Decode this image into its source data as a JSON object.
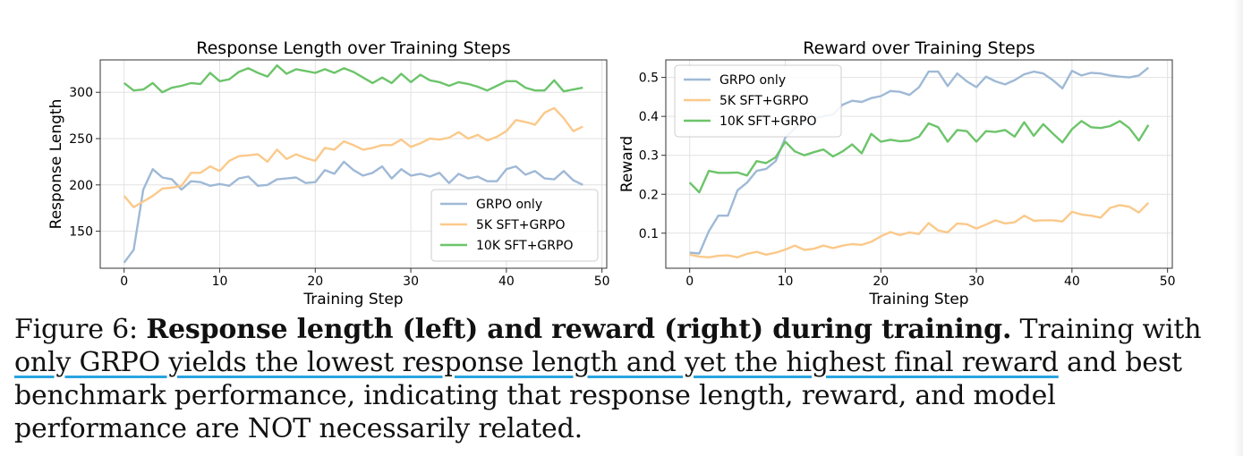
{
  "chart_data": [
    {
      "type": "line",
      "title": "Response Length over Training Steps",
      "xlabel": "Training Step",
      "ylabel": "Response Length",
      "xlim": [
        -2.5,
        50.5
      ],
      "ylim": [
        110,
        335
      ],
      "xticks": [
        0,
        10,
        20,
        30,
        40,
        50
      ],
      "yticks": [
        150,
        200,
        250,
        300
      ],
      "grid": true,
      "legend_position": "lower-right",
      "x": [
        0,
        1,
        2,
        3,
        4,
        5,
        6,
        7,
        8,
        9,
        10,
        11,
        12,
        13,
        14,
        15,
        16,
        17,
        18,
        19,
        20,
        21,
        22,
        23,
        24,
        25,
        26,
        27,
        28,
        29,
        30,
        31,
        32,
        33,
        34,
        35,
        36,
        37,
        38,
        39,
        40,
        41,
        42,
        43,
        44,
        45,
        46,
        47,
        48
      ],
      "series": [
        {
          "name": "GRPO only",
          "color": "#9fb9d6",
          "values": [
            116,
            130,
            195,
            217,
            208,
            206,
            195,
            204,
            203,
            199,
            201,
            199,
            207,
            209,
            199,
            200,
            206,
            207,
            208,
            202,
            203,
            216,
            212,
            225,
            216,
            210,
            213,
            220,
            207,
            217,
            210,
            212,
            209,
            213,
            202,
            212,
            207,
            209,
            204,
            204,
            217,
            220,
            211,
            215,
            207,
            206,
            215,
            205,
            200
          ]
        },
        {
          "name": "5K SFT+GRPO",
          "color": "#fbc98a",
          "values": [
            188,
            176,
            182,
            188,
            196,
            197,
            199,
            213,
            213,
            220,
            215,
            226,
            231,
            232,
            233,
            225,
            238,
            228,
            233,
            229,
            226,
            240,
            238,
            247,
            243,
            238,
            240,
            243,
            243,
            249,
            241,
            245,
            250,
            249,
            251,
            257,
            250,
            254,
            248,
            252,
            258,
            270,
            268,
            265,
            278,
            283,
            272,
            258,
            263
          ]
        },
        {
          "name": "10K SFT+GRPO",
          "color": "#6cc46a",
          "values": [
            310,
            302,
            303,
            310,
            300,
            305,
            307,
            310,
            309,
            321,
            312,
            314,
            322,
            326,
            321,
            317,
            329,
            320,
            325,
            323,
            321,
            325,
            321,
            326,
            322,
            316,
            310,
            316,
            310,
            320,
            311,
            319,
            313,
            311,
            307,
            311,
            309,
            306,
            302,
            307,
            312,
            312,
            305,
            302,
            302,
            313,
            301,
            303,
            305
          ]
        }
      ]
    },
    {
      "type": "line",
      "title": "Reward over Training Steps",
      "xlabel": "Training Step",
      "ylabel": "Reward",
      "xlim": [
        -2.5,
        50.5
      ],
      "ylim": [
        0.01,
        0.545
      ],
      "xticks": [
        0,
        10,
        20,
        30,
        40,
        50
      ],
      "yticks": [
        0.1,
        0.2,
        0.3,
        0.4,
        0.5
      ],
      "grid": true,
      "legend_position": "upper-left",
      "x": [
        0,
        1,
        2,
        3,
        4,
        5,
        6,
        7,
        8,
        9,
        10,
        11,
        12,
        13,
        14,
        15,
        16,
        17,
        18,
        19,
        20,
        21,
        22,
        23,
        24,
        25,
        26,
        27,
        28,
        29,
        30,
        31,
        32,
        33,
        34,
        35,
        36,
        37,
        38,
        39,
        40,
        41,
        42,
        43,
        44,
        45,
        46,
        47,
        48
      ],
      "series": [
        {
          "name": "GRPO only",
          "color": "#9fb9d6",
          "values": [
            0.05,
            0.048,
            0.105,
            0.145,
            0.145,
            0.21,
            0.23,
            0.26,
            0.265,
            0.285,
            0.345,
            0.37,
            0.385,
            0.395,
            0.4,
            0.405,
            0.43,
            0.44,
            0.437,
            0.447,
            0.452,
            0.465,
            0.463,
            0.455,
            0.475,
            0.515,
            0.515,
            0.478,
            0.51,
            0.49,
            0.475,
            0.502,
            0.49,
            0.482,
            0.493,
            0.508,
            0.515,
            0.51,
            0.493,
            0.472,
            0.517,
            0.505,
            0.512,
            0.51,
            0.505,
            0.502,
            0.5,
            0.505,
            0.525
          ]
        },
        {
          "name": "5K SFT+GRPO",
          "color": "#fbc98a",
          "values": [
            0.045,
            0.04,
            0.038,
            0.042,
            0.043,
            0.038,
            0.047,
            0.052,
            0.045,
            0.05,
            0.058,
            0.068,
            0.057,
            0.06,
            0.068,
            0.062,
            0.068,
            0.072,
            0.07,
            0.078,
            0.092,
            0.103,
            0.095,
            0.102,
            0.098,
            0.126,
            0.107,
            0.102,
            0.125,
            0.123,
            0.112,
            0.122,
            0.133,
            0.125,
            0.128,
            0.145,
            0.132,
            0.133,
            0.133,
            0.13,
            0.155,
            0.148,
            0.145,
            0.14,
            0.165,
            0.172,
            0.168,
            0.153,
            0.178
          ]
        },
        {
          "name": "10K SFT+GRPO",
          "color": "#6cc46a",
          "values": [
            0.23,
            0.205,
            0.26,
            0.255,
            0.255,
            0.256,
            0.248,
            0.285,
            0.28,
            0.295,
            0.335,
            0.31,
            0.3,
            0.308,
            0.315,
            0.297,
            0.31,
            0.328,
            0.305,
            0.355,
            0.335,
            0.34,
            0.336,
            0.338,
            0.348,
            0.382,
            0.372,
            0.335,
            0.365,
            0.362,
            0.335,
            0.362,
            0.36,
            0.365,
            0.348,
            0.385,
            0.35,
            0.38,
            0.356,
            0.333,
            0.367,
            0.388,
            0.372,
            0.37,
            0.375,
            0.388,
            0.37,
            0.338,
            0.378
          ]
        }
      ]
    }
  ],
  "caption": {
    "label": "Figure 6:",
    "bold": "Response length (left) and reward (right) during training.",
    "text1": "Training with",
    "highlight": "only GRPO yields the lowest response length and yet the highest final reward",
    "text2": "and best benchmark performance, indicating that response length, reward, and model performance are NOT necessarily related."
  }
}
